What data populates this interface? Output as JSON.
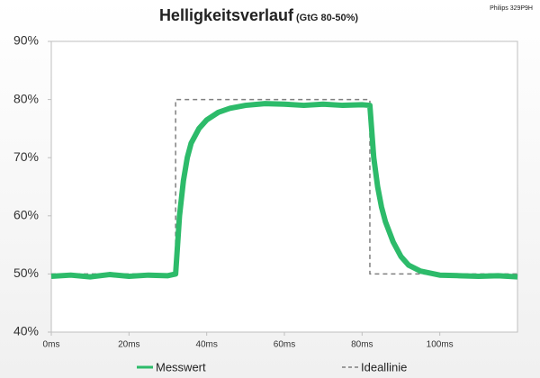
{
  "chart_data": {
    "type": "line",
    "title": "Helligkeitsverlauf",
    "subtitle": "(GtG 80-50%)",
    "annotation": "Philips 329P9H",
    "xlim": [
      0,
      120
    ],
    "ylim": [
      40,
      90
    ],
    "xticks": [
      {
        "value": 0,
        "label": "0ms"
      },
      {
        "value": 20,
        "label": "20ms"
      },
      {
        "value": 40,
        "label": "40ms"
      },
      {
        "value": 60,
        "label": "60ms"
      },
      {
        "value": 80,
        "label": "80ms"
      },
      {
        "value": 100,
        "label": "100ms"
      }
    ],
    "yticks": [
      {
        "value": 40,
        "label": "40%"
      },
      {
        "value": 50,
        "label": "50%"
      },
      {
        "value": 60,
        "label": "60%"
      },
      {
        "value": 70,
        "label": "70%"
      },
      {
        "value": 80,
        "label": "80%"
      },
      {
        "value": 90,
        "label": "90%"
      }
    ],
    "series": [
      {
        "name": "Ideallinie",
        "color": "#7f7f7f",
        "dashed": true,
        "x": [
          0,
          32,
          32,
          82,
          82,
          120
        ],
        "values": [
          50,
          50,
          80,
          80,
          50,
          50
        ]
      },
      {
        "name": "Messwert",
        "color": "#2dbb6a",
        "dashed": false,
        "x": [
          0,
          5,
          10,
          15,
          20,
          25,
          30,
          32,
          33,
          34,
          35,
          36,
          38,
          40,
          43,
          46,
          50,
          55,
          60,
          65,
          70,
          75,
          80,
          82,
          83,
          84,
          85,
          86,
          88,
          90,
          92,
          95,
          100,
          105,
          110,
          115,
          120
        ],
        "values": [
          49.6,
          49.8,
          49.5,
          49.9,
          49.6,
          49.8,
          49.7,
          50,
          60,
          66,
          70,
          72.5,
          75,
          76.5,
          77.8,
          78.5,
          79,
          79.3,
          79.2,
          79,
          79.2,
          79,
          79.1,
          79,
          70,
          65,
          61.5,
          59,
          55.5,
          53,
          51.5,
          50.5,
          49.8,
          49.7,
          49.6,
          49.7,
          49.5
        ]
      }
    ]
  }
}
